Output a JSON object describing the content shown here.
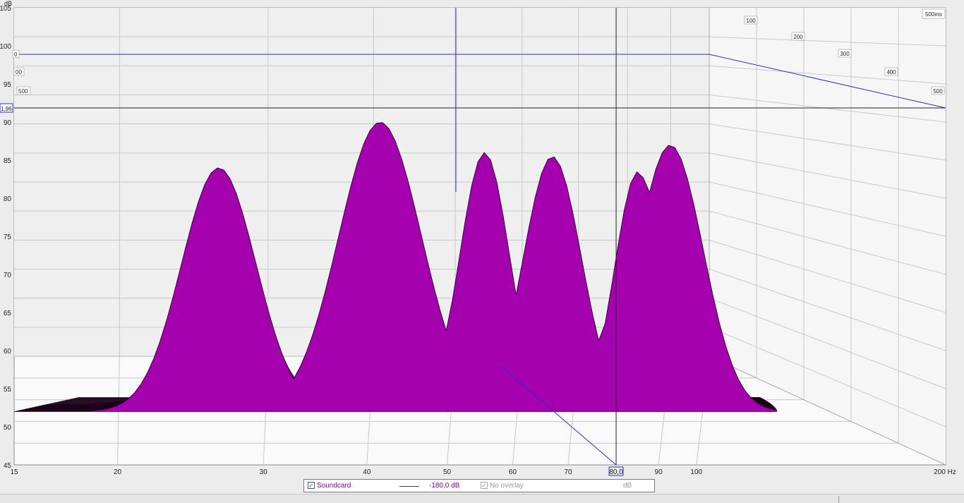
{
  "chart_data": {
    "type": "waterfall",
    "y_unit": "dB",
    "x_unit": "Hz",
    "time_unit": "ms",
    "y_ticks": [
      "105",
      "100",
      "95",
      "90",
      "85",
      "80",
      "75",
      "70",
      "65",
      "60",
      "55",
      "50",
      "45"
    ],
    "x_ticks": [
      "15",
      "20",
      "30",
      "40",
      "50",
      "60",
      "70",
      "80,0",
      "90",
      "100",
      "200 Hz"
    ],
    "time_ticks": [
      "100",
      "200",
      "300",
      "400",
      "500"
    ],
    "time_corner_label": "500ms",
    "left_depth_labels": [
      "0",
      "00",
      "500"
    ],
    "ylim": [
      45,
      105
    ],
    "xlim": [
      15,
      200
    ],
    "x_scale": "log",
    "time_range_ms": [
      0,
      500
    ],
    "cursor": {
      "freq_label": "80,0",
      "level_label": "1,96",
      "freq_hz": 80.0
    },
    "peaks_front_slice": [
      {
        "freq": 26.5,
        "level": 84
      },
      {
        "freq": 41.5,
        "level": 90
      },
      {
        "freq": 55.5,
        "level": 86
      },
      {
        "freq": 67,
        "level": 85.5
      },
      {
        "freq": 85,
        "level": 83.5
      },
      {
        "freq": 93,
        "level": 87
      }
    ],
    "fill_color": "#a500ad",
    "line_color": "#1a001a",
    "grid_color": "#c9c9c9",
    "cursor_color": "#2b2bd6",
    "floor_color": "#f9f9f9",
    "back_wall_color": "#efefef",
    "side_wall_color": "#f6f6f6",
    "grid": true
  },
  "legend": {
    "series_name": "Soundcard",
    "series_checked": "✓",
    "level_text": "-180,0 dB",
    "overlay_text": "No overlay",
    "overlay_checked": "✓",
    "unit_text": "dB",
    "series_color": "#a500ad"
  }
}
